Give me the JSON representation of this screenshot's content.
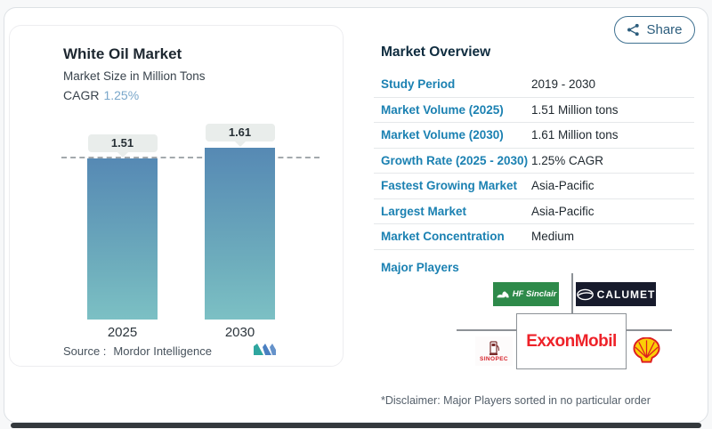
{
  "chart_card": {
    "title": "White Oil Market",
    "subtitle": "Market Size in Million Tons",
    "cagr_label": "CAGR",
    "cagr_value": "1.25%",
    "source_label": "Source :",
    "source_value": "Mordor Intelligence"
  },
  "chart_data": {
    "type": "bar",
    "title": "White Oil Market",
    "ylabel": "Market Size in Million Tons",
    "categories": [
      "2025",
      "2030"
    ],
    "values": [
      1.51,
      1.61
    ],
    "value_labels": [
      "1.51",
      "1.61"
    ],
    "reference_line": 1.51,
    "grid": false,
    "bar_gradient_top": "#5689b4",
    "bar_gradient_bottom": "#7cc0c4"
  },
  "share": {
    "label": "Share"
  },
  "overview": {
    "heading": "Market Overview",
    "rows": [
      {
        "label": "Study Period",
        "value": "2019 - 2030"
      },
      {
        "label": "Market Volume (2025)",
        "value": "1.51 Million tons"
      },
      {
        "label": "Market Volume (2030)",
        "value": "1.61 Million tons"
      },
      {
        "label": "Growth Rate (2025 - 2030)",
        "value": "1.25% CAGR"
      },
      {
        "label": "Fastest Growing Market",
        "value": "Asia-Pacific"
      },
      {
        "label": "Largest Market",
        "value": "Asia-Pacific"
      },
      {
        "label": "Market Concentration",
        "value": "Medium"
      }
    ],
    "major_players_label": "Major Players",
    "players": {
      "hf_sinclair": "HF Sinclair",
      "calumet": "CALUMET",
      "exxonmobil": "ExxonMobil",
      "sinopec": "SINOPEC",
      "shell": "Shell"
    },
    "disclaimer": "*Disclaimer: Major Players sorted in no particular order"
  },
  "colors": {
    "accent_blue_label": "#1b81b2",
    "cagr_blue": "#7aa7ca",
    "share_teal": "#2c5d7d",
    "hf_green": "#2e8a4a",
    "calumet_navy": "#171b2c",
    "exxon_red": "#ee2229",
    "shell_yellow": "#fbce07",
    "shell_red": "#dd1d21",
    "bar_top": "#5689b4",
    "bar_bottom": "#7cc0c4"
  }
}
